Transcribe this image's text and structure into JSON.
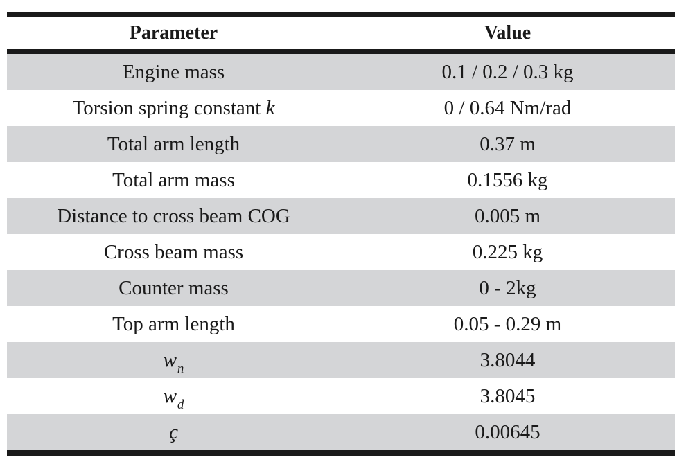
{
  "table": {
    "headers": {
      "parameter": "Parameter",
      "value": "Value"
    },
    "rows": [
      {
        "parameter": "Engine mass",
        "value": "0.1 / 0.2 / 0.3 kg"
      },
      {
        "parameter_prefix": "Torsion spring constant ",
        "parameter_symbol": "k",
        "value": "0 / 0.64 Nm/rad"
      },
      {
        "parameter": "Total arm length",
        "value": "0.37 m"
      },
      {
        "parameter": "Total arm mass",
        "value": "0.1556 kg"
      },
      {
        "parameter": "Distance to cross beam COG",
        "value": "0.005 m"
      },
      {
        "parameter": "Cross beam mass",
        "value": "0.225 kg"
      },
      {
        "parameter": "Counter mass",
        "value": "0 - 2kg"
      },
      {
        "parameter": "Top arm length",
        "value": "0.05 - 0.29 m"
      },
      {
        "symbol": "w",
        "subscript": "n",
        "value": "3.8044"
      },
      {
        "symbol": "w",
        "subscript": "d",
        "value": "3.8045"
      },
      {
        "symbol": "ç",
        "value": "0.00645"
      }
    ]
  },
  "colors": {
    "shaded_row": "#d4d5d7",
    "rule": "#1a1a1a",
    "text": "#1a1a1a"
  }
}
